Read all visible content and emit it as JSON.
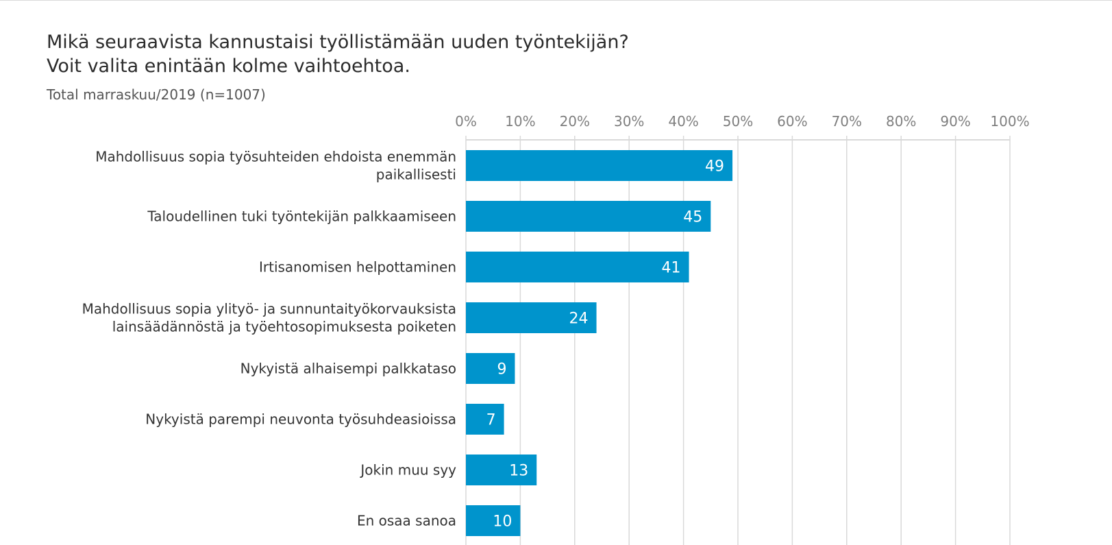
{
  "title_lines": [
    "Mikä seuraavista kannustaisi työllistämään uuden työntekijän?",
    "Voit valita enintään kolme vaihtoehtoa."
  ],
  "subtitle": "Total marraskuu/2019 (n=1007)",
  "colors": {
    "bar": "#0094cc",
    "grid": "#d9d9d9",
    "axis_text": "#7f7f7f",
    "label_text": "#333333"
  },
  "chart_data": {
    "type": "bar",
    "orientation": "horizontal",
    "title": "Mikä seuraavista kannustaisi työllistämään uuden työntekijän? Voit valita enintään kolme vaihtoehtoa.",
    "subtitle": "Total marraskuu/2019 (n=1007)",
    "categories": [
      [
        "Mahdollisuus sopia työsuhteiden ehdoista enemmän",
        "paikallisesti"
      ],
      [
        "Taloudellinen tuki työntekijän palkkaamiseen"
      ],
      [
        "Irtisanomisen helpottaminen"
      ],
      [
        "Mahdollisuus sopia ylityö- ja sunnuntaityökorvauksista",
        "lainsäädännöstä ja työehtosopimuksesta poiketen"
      ],
      [
        "Nykyistä alhaisempi palkkataso"
      ],
      [
        "Nykyistä parempi neuvonta työsuhdeasioissa"
      ],
      [
        "Jokin muu syy"
      ],
      [
        "En osaa sanoa"
      ]
    ],
    "values": [
      49,
      45,
      41,
      24,
      9,
      7,
      13,
      10
    ],
    "data_labels": [
      "49",
      "45",
      "41",
      "24",
      "9",
      "7",
      "13",
      "10"
    ],
    "xlim": [
      0,
      100
    ],
    "x_ticks": [
      "0%",
      "10%",
      "20%",
      "30%",
      "40%",
      "50%",
      "60%",
      "70%",
      "80%",
      "90%",
      "100%"
    ],
    "axis_position": "top",
    "grid": true,
    "legend": "none"
  }
}
